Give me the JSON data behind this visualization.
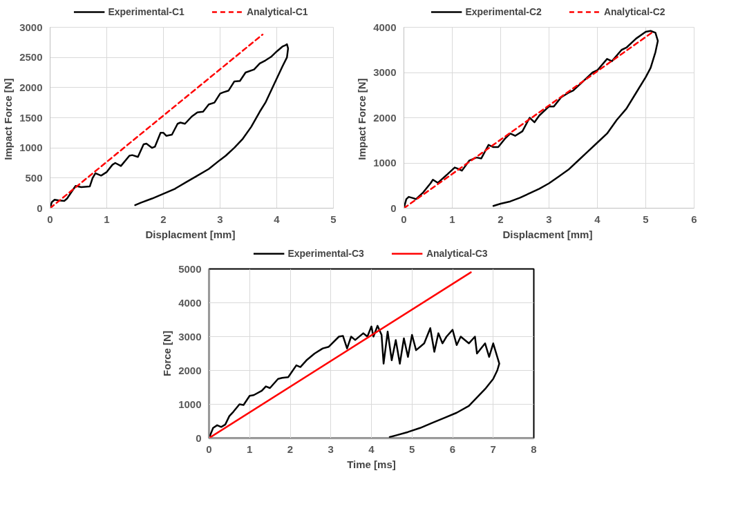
{
  "chart_data": [
    {
      "type": "line",
      "xlabel": "Displacment  [mm]",
      "ylabel": "Impact  Force [N]",
      "xlim": [
        0,
        5
      ],
      "ylim": [
        0,
        3000
      ],
      "xticks": [
        0,
        1,
        2,
        3,
        4,
        5
      ],
      "yticks": [
        0,
        500,
        1000,
        1500,
        2000,
        2500,
        3000
      ],
      "grid": true,
      "legend": "top",
      "marker": "none",
      "series": [
        {
          "name": "Experimental-C1",
          "color": "#000000",
          "line_style": "solid",
          "x": [
            0,
            0.03,
            0.08,
            0.15,
            0.25,
            0.3,
            0.4,
            0.45,
            0.55,
            0.7,
            0.75,
            0.8,
            0.9,
            1.0,
            1.1,
            1.15,
            1.25,
            1.4,
            1.45,
            1.55,
            1.65,
            1.7,
            1.8,
            1.85,
            1.95,
            2.0,
            2.05,
            2.15,
            2.25,
            2.3,
            2.38,
            2.5,
            2.6,
            2.7,
            2.8,
            2.9,
            3.0,
            3.05,
            3.15,
            3.25,
            3.35,
            3.45,
            3.6,
            3.7,
            3.8,
            3.9,
            4.0,
            4.1,
            4.15,
            4.18,
            4.2,
            4.18,
            4.1,
            4.0,
            3.9,
            3.8,
            3.7,
            3.55,
            3.4,
            3.25,
            3.1,
            3.0,
            2.8,
            2.6,
            2.4,
            2.2,
            2.0,
            1.8,
            1.6,
            1.5
          ],
          "values": [
            0,
            100,
            140,
            130,
            120,
            160,
            300,
            370,
            350,
            360,
            500,
            580,
            540,
            600,
            720,
            750,
            700,
            870,
            880,
            850,
            1060,
            1070,
            1000,
            1020,
            1250,
            1250,
            1200,
            1220,
            1400,
            1420,
            1400,
            1520,
            1590,
            1600,
            1720,
            1750,
            1900,
            1920,
            1950,
            2100,
            2110,
            2250,
            2300,
            2400,
            2450,
            2510,
            2600,
            2680,
            2700,
            2720,
            2650,
            2500,
            2350,
            2150,
            1950,
            1750,
            1600,
            1350,
            1150,
            1000,
            870,
            800,
            650,
            540,
            430,
            320,
            240,
            160,
            90,
            50
          ]
        },
        {
          "name": "Analytical-C1",
          "color": "#ff0000",
          "line_style": "dashed",
          "x": [
            0,
            3.75
          ],
          "values": [
            0,
            2880
          ]
        }
      ]
    },
    {
      "type": "line",
      "xlabel": "Displacment  [mm]",
      "ylabel": "Impact  Force [N]",
      "xlim": [
        0,
        6
      ],
      "ylim": [
        0,
        4000
      ],
      "xticks": [
        0,
        1,
        2,
        3,
        4,
        5,
        6
      ],
      "yticks": [
        0,
        1000,
        2000,
        3000,
        4000
      ],
      "grid": true,
      "legend": "top",
      "marker": "none",
      "series": [
        {
          "name": "Experimental-C2",
          "color": "#000000",
          "line_style": "solid",
          "x": [
            0,
            0.05,
            0.1,
            0.2,
            0.25,
            0.4,
            0.55,
            0.6,
            0.7,
            0.9,
            1.05,
            1.1,
            1.2,
            1.35,
            1.5,
            1.6,
            1.75,
            1.85,
            1.95,
            2.1,
            2.2,
            2.3,
            2.45,
            2.6,
            2.7,
            2.8,
            3.0,
            3.1,
            3.25,
            3.4,
            3.5,
            3.7,
            3.9,
            4.0,
            4.2,
            4.3,
            4.5,
            4.6,
            4.8,
            5.0,
            5.1,
            5.2,
            5.25,
            5.2,
            5.1,
            5.0,
            4.8,
            4.6,
            4.4,
            4.2,
            4.0,
            3.8,
            3.6,
            3.4,
            3.2,
            3.0,
            2.8,
            2.6,
            2.4,
            2.2,
            2.0,
            1.85
          ],
          "values": [
            0,
            200,
            250,
            220,
            200,
            350,
            550,
            630,
            560,
            750,
            900,
            880,
            830,
            1050,
            1120,
            1100,
            1400,
            1350,
            1350,
            1550,
            1650,
            1600,
            1700,
            2000,
            1900,
            2050,
            2250,
            2250,
            2450,
            2550,
            2600,
            2800,
            3000,
            3050,
            3300,
            3250,
            3500,
            3550,
            3750,
            3900,
            3920,
            3880,
            3700,
            3450,
            3100,
            2900,
            2550,
            2200,
            1950,
            1650,
            1450,
            1250,
            1050,
            850,
            700,
            550,
            430,
            330,
            230,
            150,
            100,
            50
          ]
        },
        {
          "name": "Analytical-C2",
          "color": "#ff0000",
          "line_style": "dashed",
          "x": [
            0,
            5.15
          ],
          "values": [
            0,
            3900
          ]
        }
      ]
    },
    {
      "type": "line",
      "xlabel": "Time [ms]",
      "ylabel": "Force [N]",
      "xlim": [
        0,
        8
      ],
      "ylim": [
        0,
        5000
      ],
      "xticks": [
        0,
        1,
        2,
        3,
        4,
        5,
        6,
        7,
        8
      ],
      "yticks": [
        0,
        1000,
        2000,
        3000,
        4000,
        5000
      ],
      "grid": true,
      "legend": "top",
      "marker": "none",
      "series": [
        {
          "name": "Experimental-C3",
          "color": "#000000",
          "line_style": "solid",
          "x": [
            0,
            0.1,
            0.2,
            0.3,
            0.4,
            0.5,
            0.6,
            0.75,
            0.85,
            1.0,
            1.1,
            1.3,
            1.4,
            1.5,
            1.7,
            1.8,
            1.95,
            2.15,
            2.25,
            2.4,
            2.6,
            2.8,
            2.95,
            3.2,
            3.3,
            3.4,
            3.5,
            3.6,
            3.8,
            3.9,
            4.0,
            4.05,
            4.15,
            4.25,
            4.3,
            4.4,
            4.5,
            4.6,
            4.7,
            4.8,
            4.9,
            5.0,
            5.1,
            5.2,
            5.3,
            5.45,
            5.55,
            5.65,
            5.75,
            5.85,
            6.0,
            6.1,
            6.2,
            6.4,
            6.55,
            6.6,
            6.8,
            6.9,
            7.0,
            7.1,
            7.15,
            7.1,
            7.0,
            6.8,
            6.6,
            6.4,
            6.1,
            5.8,
            5.5,
            5.2,
            4.9,
            4.6,
            4.45
          ],
          "values": [
            0,
            300,
            380,
            330,
            400,
            650,
            780,
            1000,
            980,
            1250,
            1270,
            1400,
            1530,
            1480,
            1750,
            1780,
            1800,
            2150,
            2100,
            2300,
            2500,
            2650,
            2700,
            3000,
            3020,
            2650,
            3000,
            2900,
            3100,
            3000,
            3300,
            3000,
            3320,
            3050,
            2200,
            3150,
            2300,
            2900,
            2200,
            2950,
            2400,
            3050,
            2600,
            2700,
            2800,
            3250,
            2550,
            3100,
            2800,
            3000,
            3200,
            2750,
            3000,
            2800,
            3000,
            2500,
            2800,
            2400,
            2800,
            2400,
            2200,
            2000,
            1750,
            1450,
            1200,
            950,
            750,
            600,
            450,
            300,
            180,
            80,
            30
          ]
        },
        {
          "name": "Analytical-C3",
          "color": "#ff0000",
          "line_style": "solid",
          "x": [
            0,
            6.45
          ],
          "values": [
            0,
            4900
          ]
        }
      ]
    }
  ]
}
